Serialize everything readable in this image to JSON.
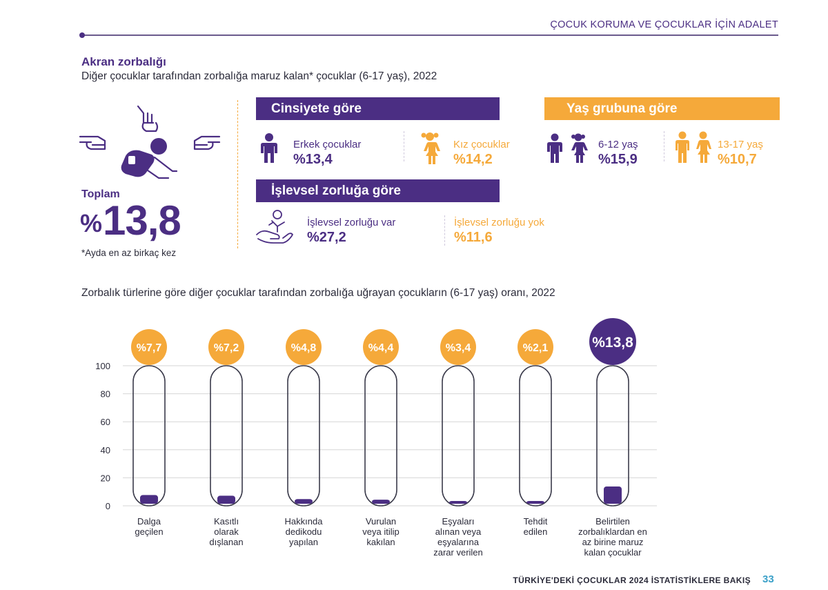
{
  "header": {
    "title": "ÇOCUK KORUMA VE ÇOCUKLAR İÇİN ADALET"
  },
  "section": {
    "title": "Akran zorbalığı",
    "subtitle": "Diğer çocuklar tarafından zorbalığa maruz kalan* çocuklar (6-17 yaş), 2022"
  },
  "total": {
    "label": "Toplam",
    "percent_sign": "%",
    "value": "13,8",
    "footnote": "*Ayda en az birkaç kez"
  },
  "by_gender": {
    "title": "Cinsiyete göre",
    "items": [
      {
        "label": "Erkek çocuklar",
        "value": "%13,4"
      },
      {
        "label": "Kız çocuklar",
        "value": "%14,2"
      }
    ]
  },
  "by_age": {
    "title": "Yaş grubuna göre",
    "items": [
      {
        "label": "6-12 yaş",
        "value": "%15,9"
      },
      {
        "label": "13-17 yaş",
        "value": "%10,7"
      }
    ]
  },
  "by_disability": {
    "title": "İşlevsel zorluğa göre",
    "items": [
      {
        "label": "İşlevsel zorluğu var",
        "value": "%27,2"
      },
      {
        "label": "İşlevsel zorluğu yok",
        "value": "%11,6"
      }
    ]
  },
  "chart_data": {
    "type": "bar",
    "title": "Zorbalık türlerine göre diğer çocuklar tarafından zorbalığa uğrayan çocukların (6-17 yaş) oranı, 2022",
    "categories": [
      [
        "Dalga",
        "geçilen"
      ],
      [
        "Kasıtlı",
        "olarak",
        "dışlanan"
      ],
      [
        "Hakkında",
        "dedikodu",
        "yapılan"
      ],
      [
        "Vurulan",
        "veya itilip",
        "kakılan"
      ],
      [
        "Eşyaları",
        "alınan veya",
        "eşyalarına",
        "zarar verilen"
      ],
      [
        "Tehdit",
        "edilen"
      ],
      [
        "Belirtilen",
        "zorbalıklardan en",
        "az birine maruz",
        "kalan çocuklar"
      ]
    ],
    "values": [
      7.7,
      7.2,
      4.8,
      4.4,
      3.4,
      2.1,
      13.8
    ],
    "value_labels": [
      "%7,7",
      "%7,2",
      "%4,8",
      "%4,4",
      "%3,4",
      "%2,1",
      "%13,8"
    ],
    "ylim": [
      0,
      100
    ],
    "yticks": [
      0,
      20,
      40,
      60,
      80,
      100
    ],
    "grid": true,
    "colors": {
      "bar": "#4b2e83",
      "badge": "#f5a93a",
      "highlight_badge": "#4b2e83",
      "tube": "#3a3a4a"
    }
  },
  "footer": {
    "text": "TÜRKİYE'DEKİ ÇOCUKLAR 2024 İSTATİSTİKLERE BAKIŞ",
    "page_number": "33"
  },
  "icons": [
    "bullying-illustration-icon",
    "boy-icon",
    "girl-icon",
    "young-children-icon",
    "teen-children-icon",
    "disability-support-icon"
  ]
}
